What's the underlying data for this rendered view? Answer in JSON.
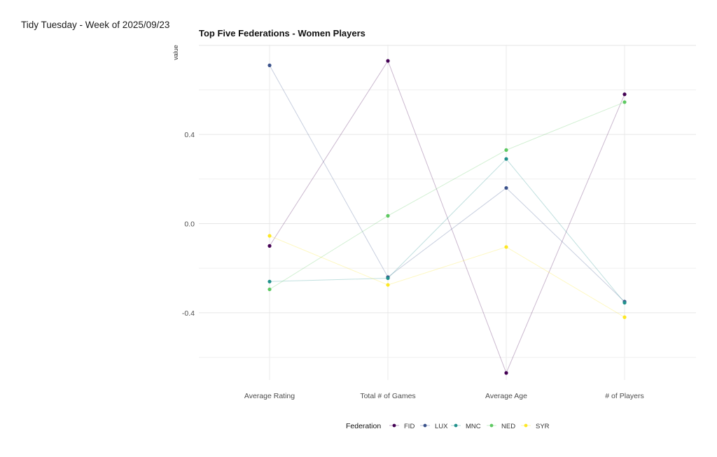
{
  "caption": "Tidy Tuesday - Week of 2025/09/23",
  "chart_data": {
    "type": "line",
    "title": "Top Five Federations - Women Players",
    "xlabel": "",
    "ylabel": "value",
    "categories": [
      "Average Rating",
      "Total # of Games",
      "Average Age",
      "# of Players"
    ],
    "ylim": [
      -0.6,
      0.8
    ],
    "yticks": [
      -0.4,
      0.0,
      0.4
    ],
    "ytick_labels": [
      "-0.4",
      "0.0",
      "0.4"
    ],
    "grid": true,
    "legend_title": "Federation",
    "legend_position": "bottom",
    "series": [
      {
        "name": "FID",
        "color": "#440154",
        "values": [
          -0.1,
          0.73,
          -0.67,
          0.58
        ]
      },
      {
        "name": "LUX",
        "color": "#3b528b",
        "values": [
          0.71,
          -0.24,
          0.16,
          -0.35
        ]
      },
      {
        "name": "MNC",
        "color": "#21918c",
        "values": [
          -0.26,
          -0.245,
          0.29,
          -0.355
        ]
      },
      {
        "name": "NED",
        "color": "#5ec962",
        "values": [
          -0.295,
          0.035,
          0.33,
          0.545
        ]
      },
      {
        "name": "SYR",
        "color": "#fde725",
        "values": [
          -0.055,
          -0.275,
          -0.105,
          -0.42
        ]
      }
    ]
  }
}
